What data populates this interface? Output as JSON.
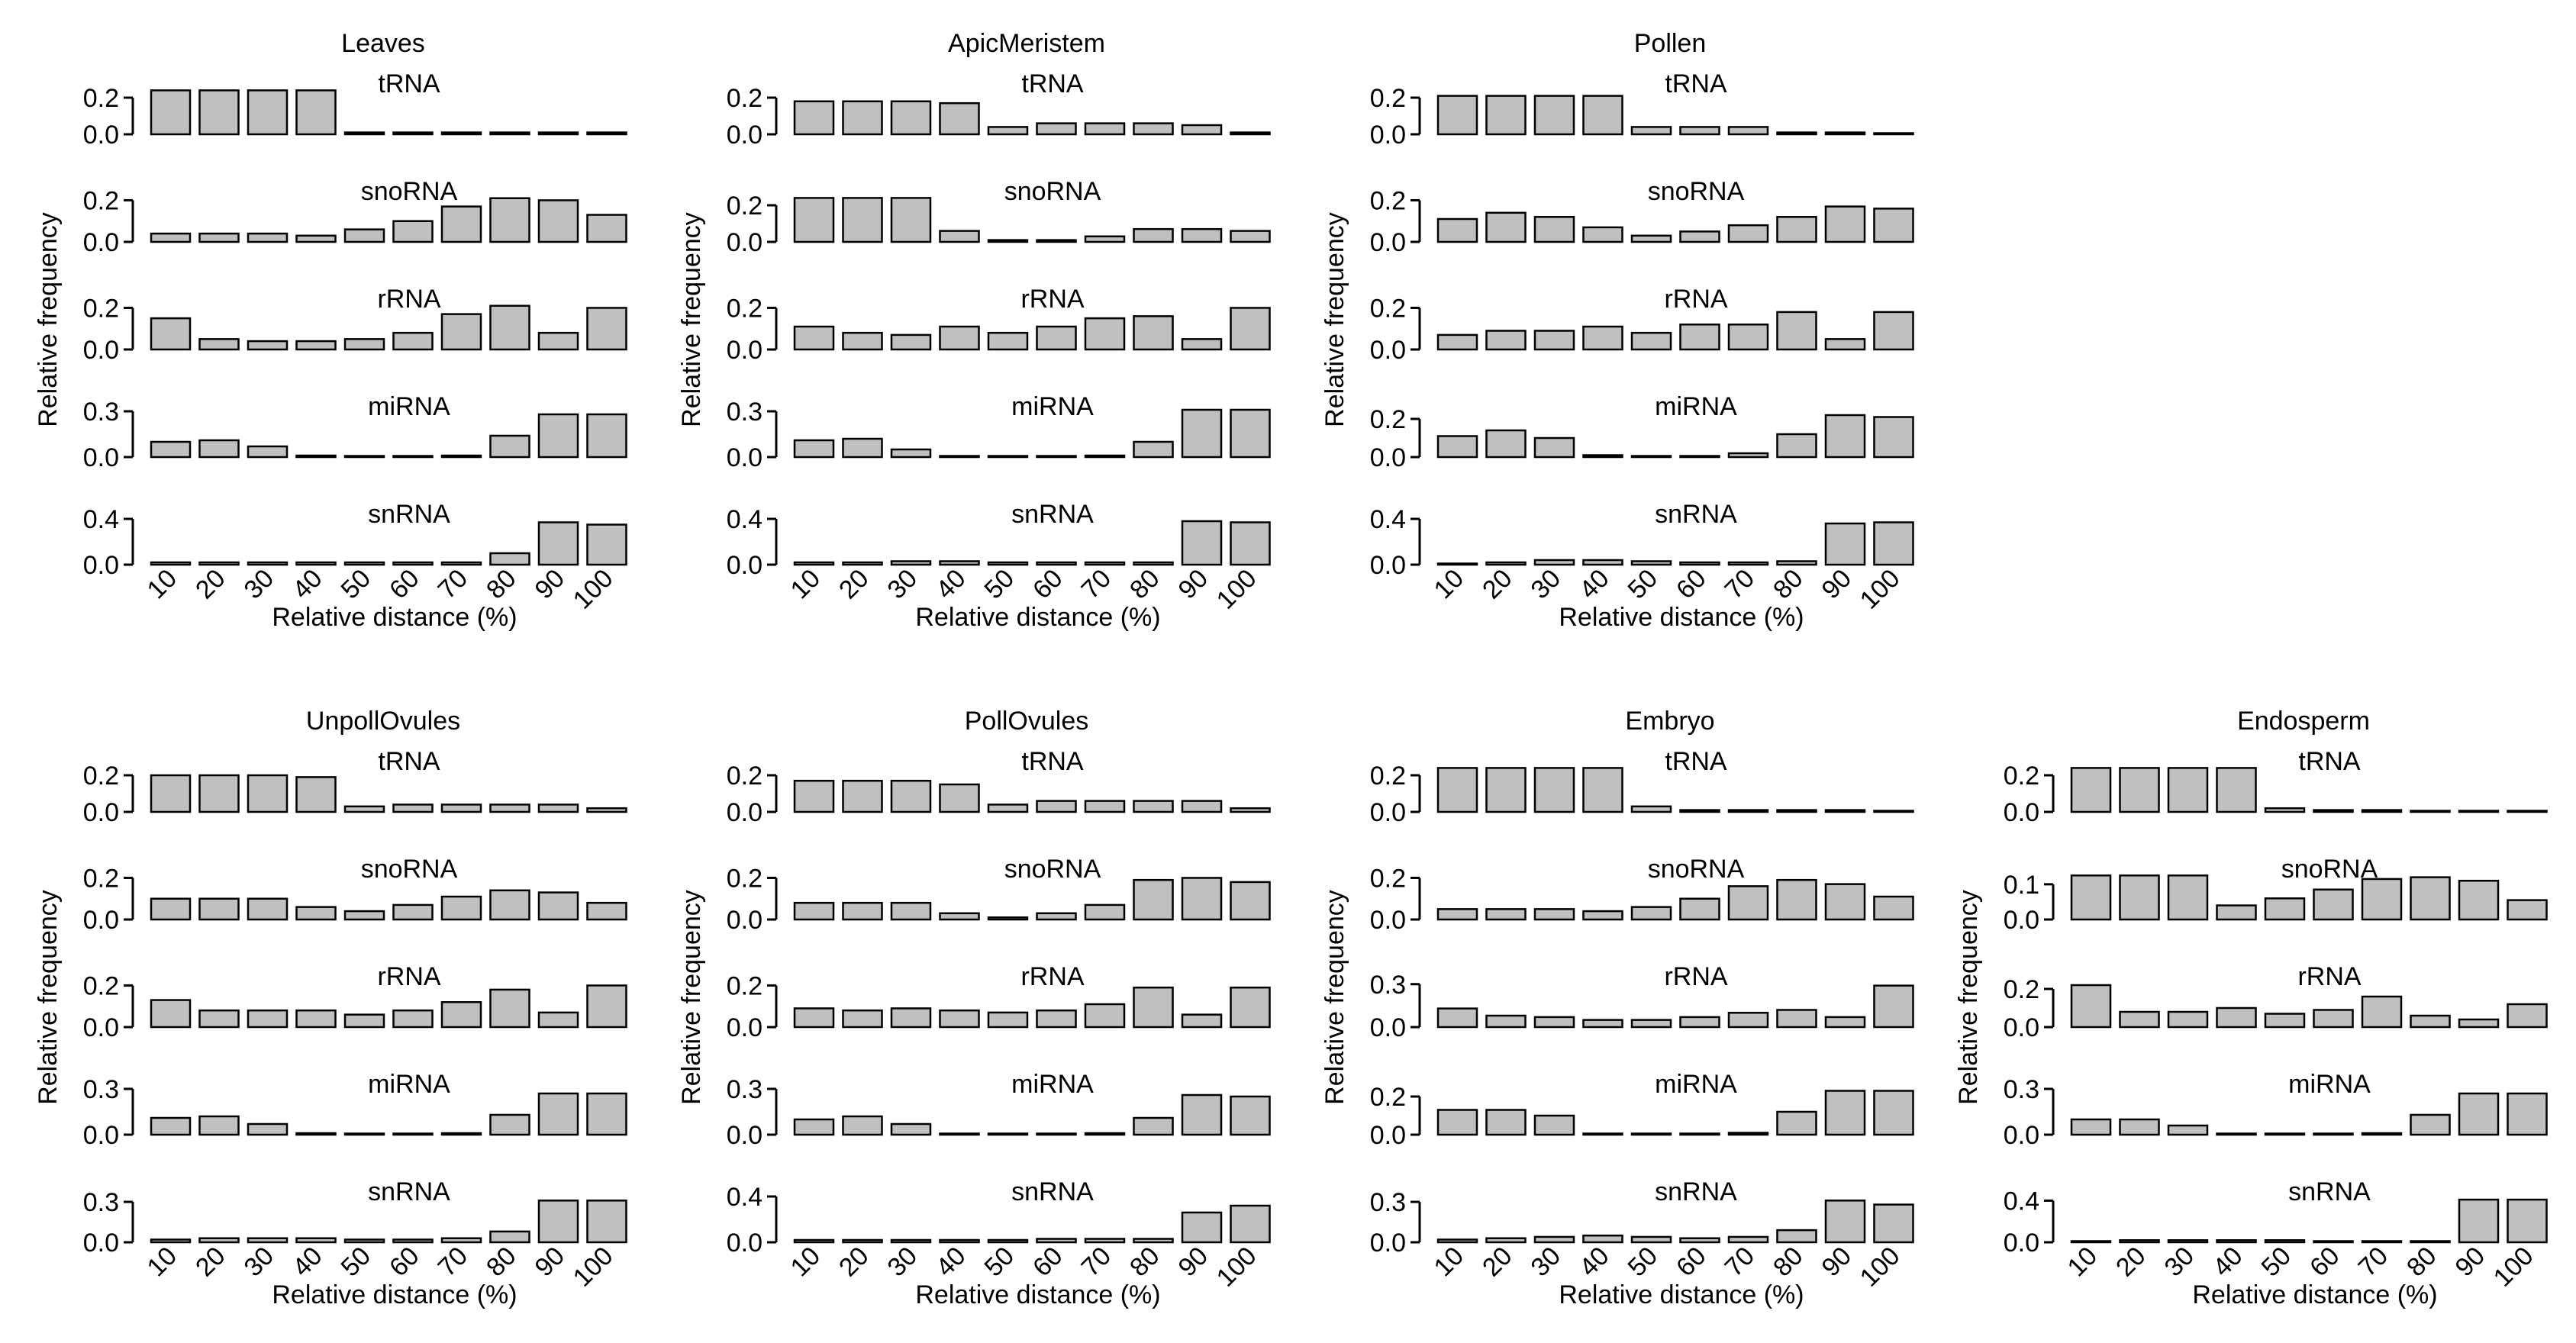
{
  "colors": {
    "bar_fill": "#c0c0c0",
    "bar_stroke": "#000000",
    "axis": "#000000",
    "background": "#ffffff"
  },
  "chart_data": [
    {
      "type": "bar",
      "title": "Leaves",
      "xlabel": "Relative distance (%)",
      "ylabel": "Relative frequency",
      "categories": [
        "10",
        "20",
        "30",
        "40",
        "50",
        "60",
        "70",
        "80",
        "90",
        "100"
      ],
      "series": [
        {
          "name": "tRNA",
          "values": [
            0.24,
            0.24,
            0.24,
            0.24,
            0.01,
            0.01,
            0.01,
            0.01,
            0.01,
            0.01
          ],
          "ylim": [
            0,
            0.25
          ],
          "yticks": [
            "0.0",
            "0.2"
          ]
        },
        {
          "name": "snoRNA",
          "values": [
            0.04,
            0.04,
            0.04,
            0.03,
            0.06,
            0.1,
            0.17,
            0.21,
            0.2,
            0.13
          ],
          "ylim": [
            0,
            0.22
          ],
          "yticks": [
            "0.0",
            "0.2"
          ]
        },
        {
          "name": "rRNA",
          "values": [
            0.15,
            0.05,
            0.04,
            0.04,
            0.05,
            0.08,
            0.17,
            0.21,
            0.08,
            0.2
          ],
          "ylim": [
            0,
            0.22
          ],
          "yticks": [
            "0.0",
            "0.2"
          ]
        },
        {
          "name": "miRNA",
          "values": [
            0.1,
            0.11,
            0.07,
            0.01,
            0.0,
            0.0,
            0.01,
            0.14,
            0.28,
            0.28
          ],
          "ylim": [
            0,
            0.3
          ],
          "yticks": [
            "0.0",
            "0.3"
          ]
        },
        {
          "name": "snRNA",
          "values": [
            0.02,
            0.02,
            0.02,
            0.02,
            0.02,
            0.02,
            0.02,
            0.1,
            0.37,
            0.35
          ],
          "ylim": [
            0,
            0.4
          ],
          "yticks": [
            "0.0",
            "0.4"
          ]
        }
      ]
    },
    {
      "type": "bar",
      "title": "ApicMeristem",
      "xlabel": "Relative distance (%)",
      "ylabel": "Relative frequency",
      "categories": [
        "10",
        "20",
        "30",
        "40",
        "50",
        "60",
        "70",
        "80",
        "90",
        "100"
      ],
      "series": [
        {
          "name": "tRNA",
          "values": [
            0.18,
            0.18,
            0.18,
            0.17,
            0.04,
            0.06,
            0.06,
            0.06,
            0.05,
            0.01
          ],
          "ylim": [
            0,
            0.25
          ],
          "yticks": [
            "0.0",
            "0.2"
          ]
        },
        {
          "name": "snoRNA",
          "values": [
            0.24,
            0.24,
            0.24,
            0.06,
            0.01,
            0.01,
            0.03,
            0.07,
            0.07,
            0.06
          ],
          "ylim": [
            0,
            0.25
          ],
          "yticks": [
            "0.0",
            "0.2"
          ]
        },
        {
          "name": "rRNA",
          "values": [
            0.11,
            0.08,
            0.07,
            0.11,
            0.08,
            0.11,
            0.15,
            0.16,
            0.05,
            0.2
          ],
          "ylim": [
            0,
            0.22
          ],
          "yticks": [
            "0.0",
            "0.2"
          ]
        },
        {
          "name": "miRNA",
          "values": [
            0.11,
            0.12,
            0.05,
            0.0,
            0.0,
            0.0,
            0.01,
            0.1,
            0.31,
            0.31
          ],
          "ylim": [
            0,
            0.3
          ],
          "yticks": [
            "0.0",
            "0.3"
          ]
        },
        {
          "name": "snRNA",
          "values": [
            0.02,
            0.02,
            0.03,
            0.03,
            0.02,
            0.02,
            0.02,
            0.02,
            0.38,
            0.37
          ],
          "ylim": [
            0,
            0.4
          ],
          "yticks": [
            "0.0",
            "0.4"
          ]
        }
      ]
    },
    {
      "type": "bar",
      "title": "Pollen",
      "xlabel": "Relative distance (%)",
      "ylabel": "Relative frequency",
      "categories": [
        "10",
        "20",
        "30",
        "40",
        "50",
        "60",
        "70",
        "80",
        "90",
        "100"
      ],
      "series": [
        {
          "name": "tRNA",
          "values": [
            0.21,
            0.21,
            0.21,
            0.21,
            0.04,
            0.04,
            0.04,
            0.01,
            0.01,
            0.0
          ],
          "ylim": [
            0,
            0.25
          ],
          "yticks": [
            "0.0",
            "0.2"
          ]
        },
        {
          "name": "snoRNA",
          "values": [
            0.11,
            0.14,
            0.12,
            0.07,
            0.03,
            0.05,
            0.08,
            0.12,
            0.17,
            0.16
          ],
          "ylim": [
            0,
            0.22
          ],
          "yticks": [
            "0.0",
            "0.2"
          ]
        },
        {
          "name": "rRNA",
          "values": [
            0.07,
            0.09,
            0.09,
            0.11,
            0.08,
            0.12,
            0.12,
            0.18,
            0.05,
            0.18
          ],
          "ylim": [
            0,
            0.22
          ],
          "yticks": [
            "0.0",
            "0.2"
          ]
        },
        {
          "name": "miRNA",
          "values": [
            0.11,
            0.14,
            0.1,
            0.01,
            0.0,
            0.0,
            0.02,
            0.12,
            0.22,
            0.21
          ],
          "ylim": [
            0,
            0.24
          ],
          "yticks": [
            "0.0",
            "0.2"
          ]
        },
        {
          "name": "snRNA",
          "values": [
            0.01,
            0.02,
            0.04,
            0.04,
            0.03,
            0.02,
            0.02,
            0.03,
            0.36,
            0.37
          ],
          "ylim": [
            0,
            0.4
          ],
          "yticks": [
            "0.0",
            "0.4"
          ]
        }
      ]
    },
    {
      "type": "bar",
      "title": "UnpollOvules",
      "xlabel": "Relative distance (%)",
      "ylabel": "Relative frequency",
      "categories": [
        "10",
        "20",
        "30",
        "40",
        "50",
        "60",
        "70",
        "80",
        "90",
        "100"
      ],
      "series": [
        {
          "name": "tRNA",
          "values": [
            0.2,
            0.2,
            0.2,
            0.19,
            0.03,
            0.04,
            0.04,
            0.04,
            0.04,
            0.02
          ],
          "ylim": [
            0,
            0.25
          ],
          "yticks": [
            "0.0",
            "0.2"
          ]
        },
        {
          "name": "snoRNA",
          "values": [
            0.1,
            0.1,
            0.1,
            0.06,
            0.04,
            0.07,
            0.11,
            0.14,
            0.13,
            0.08
          ],
          "ylim": [
            0,
            0.22
          ],
          "yticks": [
            "0.0",
            "0.2"
          ]
        },
        {
          "name": "rRNA",
          "values": [
            0.13,
            0.08,
            0.08,
            0.08,
            0.06,
            0.08,
            0.12,
            0.18,
            0.07,
            0.2
          ],
          "ylim": [
            0,
            0.22
          ],
          "yticks": [
            "0.0",
            "0.2"
          ]
        },
        {
          "name": "miRNA",
          "values": [
            0.11,
            0.12,
            0.07,
            0.01,
            0.0,
            0.0,
            0.01,
            0.13,
            0.27,
            0.27
          ],
          "ylim": [
            0,
            0.3
          ],
          "yticks": [
            "0.0",
            "0.3"
          ]
        },
        {
          "name": "snRNA",
          "values": [
            0.02,
            0.03,
            0.03,
            0.03,
            0.02,
            0.02,
            0.03,
            0.08,
            0.31,
            0.31
          ],
          "ylim": [
            0,
            0.34
          ],
          "yticks": [
            "0.0",
            "0.3"
          ]
        }
      ]
    },
    {
      "type": "bar",
      "title": "PollOvules",
      "xlabel": "Relative distance (%)",
      "ylabel": "Relative frequency",
      "categories": [
        "10",
        "20",
        "30",
        "40",
        "50",
        "60",
        "70",
        "80",
        "90",
        "100"
      ],
      "series": [
        {
          "name": "tRNA",
          "values": [
            0.17,
            0.17,
            0.17,
            0.15,
            0.04,
            0.06,
            0.06,
            0.06,
            0.06,
            0.02
          ],
          "ylim": [
            0,
            0.25
          ],
          "yticks": [
            "0.0",
            "0.2"
          ]
        },
        {
          "name": "snoRNA",
          "values": [
            0.08,
            0.08,
            0.08,
            0.03,
            0.01,
            0.03,
            0.07,
            0.19,
            0.2,
            0.18
          ],
          "ylim": [
            0,
            0.22
          ],
          "yticks": [
            "0.0",
            "0.2"
          ]
        },
        {
          "name": "rRNA",
          "values": [
            0.09,
            0.08,
            0.09,
            0.08,
            0.07,
            0.08,
            0.11,
            0.19,
            0.06,
            0.19
          ],
          "ylim": [
            0,
            0.22
          ],
          "yticks": [
            "0.0",
            "0.2"
          ]
        },
        {
          "name": "miRNA",
          "values": [
            0.1,
            0.12,
            0.07,
            0.0,
            0.0,
            0.0,
            0.01,
            0.11,
            0.26,
            0.25
          ],
          "ylim": [
            0,
            0.3
          ],
          "yticks": [
            "0.0",
            "0.3"
          ]
        },
        {
          "name": "snRNA",
          "values": [
            0.02,
            0.02,
            0.02,
            0.02,
            0.02,
            0.03,
            0.03,
            0.03,
            0.26,
            0.32
          ],
          "ylim": [
            0,
            0.4
          ],
          "yticks": [
            "0.0",
            "0.4"
          ]
        }
      ]
    },
    {
      "type": "bar",
      "title": "Embryo",
      "xlabel": "Relative distance (%)",
      "ylabel": "Relative frequency",
      "categories": [
        "10",
        "20",
        "30",
        "40",
        "50",
        "60",
        "70",
        "80",
        "90",
        "100"
      ],
      "series": [
        {
          "name": "tRNA",
          "values": [
            0.24,
            0.24,
            0.24,
            0.24,
            0.03,
            0.01,
            0.01,
            0.01,
            0.01,
            0.0
          ],
          "ylim": [
            0,
            0.25
          ],
          "yticks": [
            "0.0",
            "0.2"
          ]
        },
        {
          "name": "snoRNA",
          "values": [
            0.05,
            0.05,
            0.05,
            0.04,
            0.06,
            0.1,
            0.16,
            0.19,
            0.17,
            0.11
          ],
          "ylim": [
            0,
            0.22
          ],
          "yticks": [
            "0.0",
            "0.2"
          ]
        },
        {
          "name": "rRNA",
          "values": [
            0.13,
            0.08,
            0.07,
            0.05,
            0.05,
            0.07,
            0.1,
            0.12,
            0.07,
            0.29
          ],
          "ylim": [
            0,
            0.32
          ],
          "yticks": [
            "0.0",
            "0.3"
          ]
        },
        {
          "name": "miRNA",
          "values": [
            0.13,
            0.13,
            0.1,
            0.0,
            0.0,
            0.0,
            0.01,
            0.12,
            0.23,
            0.23
          ],
          "ylim": [
            0,
            0.24
          ],
          "yticks": [
            "0.0",
            "0.2"
          ]
        },
        {
          "name": "snRNA",
          "values": [
            0.02,
            0.03,
            0.04,
            0.05,
            0.04,
            0.03,
            0.04,
            0.09,
            0.31,
            0.28
          ],
          "ylim": [
            0,
            0.34
          ],
          "yticks": [
            "0.0",
            "0.3"
          ]
        }
      ]
    },
    {
      "type": "bar",
      "title": "Endosperm",
      "xlabel": "Relative distance (%)",
      "ylabel": "Relative frequency",
      "categories": [
        "10",
        "20",
        "30",
        "40",
        "50",
        "60",
        "70",
        "80",
        "90",
        "100"
      ],
      "series": [
        {
          "name": "tRNA",
          "values": [
            0.24,
            0.24,
            0.24,
            0.24,
            0.02,
            0.01,
            0.01,
            0.0,
            0.0,
            0.0
          ],
          "ylim": [
            0,
            0.25
          ],
          "yticks": [
            "0.0",
            "0.2"
          ]
        },
        {
          "name": "snoRNA",
          "values": [
            0.125,
            0.125,
            0.125,
            0.04,
            0.06,
            0.085,
            0.115,
            0.12,
            0.11,
            0.055
          ],
          "ylim": [
            0,
            0.13
          ],
          "yticks": [
            "0.0",
            "0.1"
          ]
        },
        {
          "name": "rRNA",
          "values": [
            0.22,
            0.08,
            0.08,
            0.1,
            0.07,
            0.09,
            0.16,
            0.06,
            0.04,
            0.12
          ],
          "ylim": [
            0,
            0.24
          ],
          "yticks": [
            "0.0",
            "0.2"
          ]
        },
        {
          "name": "miRNA",
          "values": [
            0.1,
            0.1,
            0.06,
            0.0,
            0.0,
            0.0,
            0.01,
            0.13,
            0.27,
            0.27
          ],
          "ylim": [
            0,
            0.3
          ],
          "yticks": [
            "0.0",
            "0.3"
          ]
        },
        {
          "name": "snRNA",
          "values": [
            0.01,
            0.02,
            0.02,
            0.02,
            0.02,
            0.01,
            0.01,
            0.01,
            0.41,
            0.41
          ],
          "ylim": [
            0,
            0.44
          ],
          "yticks": [
            "0.0",
            "0.4"
          ]
        }
      ]
    }
  ]
}
